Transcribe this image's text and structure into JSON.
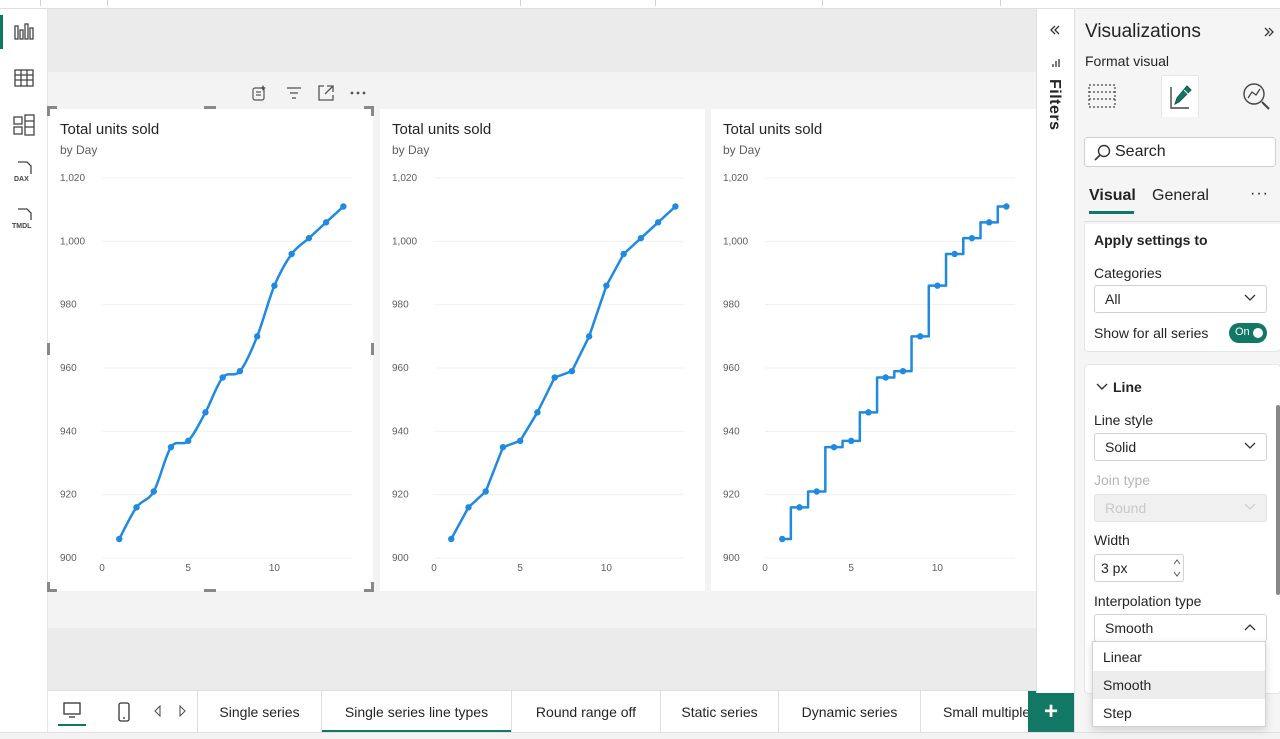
{
  "rail": {
    "items": [
      {
        "icon": "report-view-icon",
        "active": true
      },
      {
        "icon": "table-view-icon",
        "active": false
      },
      {
        "icon": "model-view-icon",
        "active": false
      },
      {
        "icon": "dax-query-icon",
        "active": false,
        "label": "DAX"
      },
      {
        "icon": "tmdl-view-icon",
        "active": false,
        "label": "TMDL"
      }
    ]
  },
  "cards": [
    {
      "title": "Total units sold",
      "subtitle": "by Day"
    },
    {
      "title": "Total units sold",
      "subtitle": "by Day"
    },
    {
      "title": "Total units sold",
      "subtitle": "by Day"
    }
  ],
  "chart_data": [
    {
      "type": "line",
      "title": "Total units sold",
      "subtitle": "by Day",
      "interpolation": "smooth",
      "x": [
        1,
        2,
        3,
        4,
        5,
        6,
        7,
        8,
        9,
        10,
        11,
        12,
        13,
        14
      ],
      "values": [
        906,
        916,
        921,
        935,
        937,
        946,
        957,
        959,
        970,
        986,
        996,
        1001,
        1006,
        1011
      ],
      "xlim": [
        0,
        14.5
      ],
      "ylim": [
        900,
        1020
      ],
      "xticks": [
        0,
        5,
        10
      ],
      "yticks": [
        900,
        920,
        940,
        960,
        980,
        1000,
        1020
      ],
      "ytick_labels": [
        "900",
        "920",
        "940",
        "960",
        "980",
        "1,000",
        "1,020"
      ],
      "color": "#1f8ae0"
    },
    {
      "type": "line",
      "title": "Total units sold",
      "subtitle": "by Day",
      "interpolation": "linear",
      "x": [
        1,
        2,
        3,
        4,
        5,
        6,
        7,
        8,
        9,
        10,
        11,
        12,
        13,
        14
      ],
      "values": [
        906,
        916,
        921,
        935,
        937,
        946,
        957,
        959,
        970,
        986,
        996,
        1001,
        1006,
        1011
      ],
      "xlim": [
        0,
        14.5
      ],
      "ylim": [
        900,
        1020
      ],
      "xticks": [
        0,
        5,
        10
      ],
      "yticks": [
        900,
        920,
        940,
        960,
        980,
        1000,
        1020
      ],
      "ytick_labels": [
        "900",
        "920",
        "940",
        "960",
        "980",
        "1,000",
        "1,020"
      ],
      "color": "#1f8ae0"
    },
    {
      "type": "line",
      "title": "Total units sold",
      "subtitle": "by Day",
      "interpolation": "step",
      "x": [
        1,
        2,
        3,
        4,
        5,
        6,
        7,
        8,
        9,
        10,
        11,
        12,
        13,
        14
      ],
      "values": [
        906,
        916,
        921,
        935,
        937,
        946,
        957,
        959,
        970,
        986,
        996,
        1001,
        1006,
        1011
      ],
      "xlim": [
        0,
        14.5
      ],
      "ylim": [
        900,
        1020
      ],
      "xticks": [
        0,
        5,
        10
      ],
      "yticks": [
        900,
        920,
        940,
        960,
        980,
        1000,
        1020
      ],
      "ytick_labels": [
        "900",
        "920",
        "940",
        "960",
        "980",
        "1,000",
        "1,020"
      ],
      "color": "#1f8ae0"
    }
  ],
  "tabs": [
    {
      "label": "Single series",
      "active": false
    },
    {
      "label": "Single series line types",
      "active": true
    },
    {
      "label": "Round range off",
      "active": false
    },
    {
      "label": "Static series",
      "active": false
    },
    {
      "label": "Dynamic series",
      "active": false
    },
    {
      "label": "Small multiple",
      "active": false
    }
  ],
  "add_page": "+",
  "filters": {
    "label": "Filters"
  },
  "viz": {
    "title": "Visualizations",
    "subtitle": "Format visual",
    "search_placeholder": "Search",
    "tab_visual": "Visual",
    "tab_general": "General",
    "more": "···",
    "apply_settings": "Apply settings to",
    "categories_label": "Categories",
    "categories_value": "All",
    "show_all_series": "Show for all series",
    "toggle_on": "On",
    "line_section": "Line",
    "line_style_label": "Line style",
    "line_style_value": "Solid",
    "join_type_label": "Join type",
    "join_type_value": "Round",
    "width_label": "Width",
    "width_value": "3 px",
    "interp_label": "Interpolation type",
    "interp_value": "Smooth",
    "interp_options": [
      "Linear",
      "Smooth",
      "Step"
    ],
    "interp_selected": "Smooth"
  },
  "colors": {
    "accent": "#117865",
    "line": "#1f8ae0"
  }
}
